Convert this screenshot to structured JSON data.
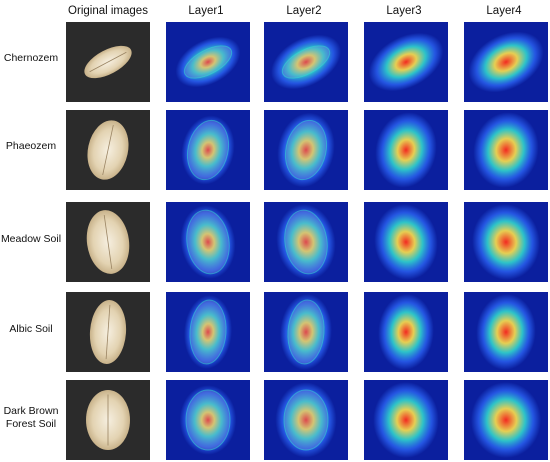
{
  "columns": [
    "Original images",
    "Layer1",
    "Layer2",
    "Layer3",
    "Layer4"
  ],
  "rows": [
    {
      "label": "Chernozem"
    },
    {
      "label": "Phaeozem"
    },
    {
      "label": "Meadow Soil"
    },
    {
      "label": "Albic Soil"
    },
    {
      "label": "Dark Brown Forest Soil"
    }
  ],
  "colors": {
    "photo_bg": "#2b2b2b",
    "heatmap_bg": "#0b1f9e",
    "heat_low": "#2f6cff",
    "heat_mid": "#33e0d0",
    "heat_high": "#ffe24a",
    "heat_peak": "#ff2a1a"
  }
}
